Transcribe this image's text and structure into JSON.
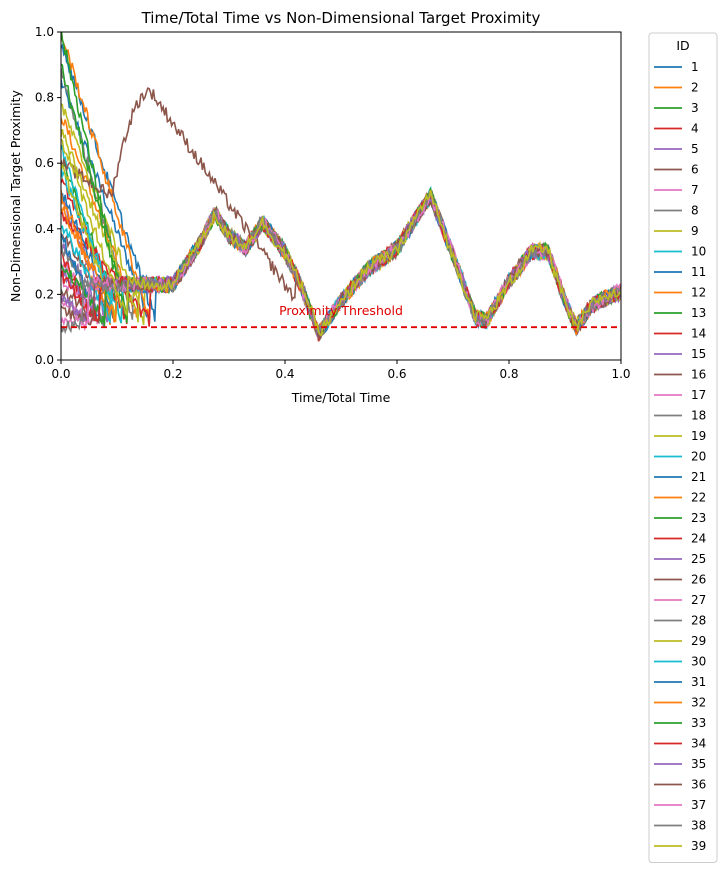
{
  "chart_data": {
    "type": "line",
    "title": "Time/Total Time vs Non-Dimensional Target Proximity",
    "xlabel": "Time/Total Time",
    "ylabel": "Non-Dimensional Target Proximity",
    "xlim": [
      0,
      1
    ],
    "ylim": [
      0,
      1
    ],
    "x_ticks": [
      "0.0",
      "0.2",
      "0.4",
      "0.6",
      "0.8",
      "1.0"
    ],
    "y_ticks": [
      "0.0",
      "0.2",
      "0.4",
      "0.6",
      "0.8",
      "1.0"
    ],
    "grid": false,
    "legend": {
      "title": "ID",
      "placement": "outside-right"
    },
    "threshold": {
      "y": 0.1,
      "label": "Proximity Threshold",
      "color": "#e00000",
      "style": "dashed"
    },
    "common_x": [
      0.2,
      0.25,
      0.275,
      0.3,
      0.33,
      0.36,
      0.4,
      0.43,
      0.46,
      0.5,
      0.55,
      0.6,
      0.64,
      0.66,
      0.7,
      0.74,
      0.76,
      0.8,
      0.84,
      0.87,
      0.9,
      0.92,
      0.95,
      1.0
    ],
    "common_y": [
      0.23,
      0.36,
      0.45,
      0.38,
      0.34,
      0.42,
      0.33,
      0.22,
      0.08,
      0.18,
      0.28,
      0.34,
      0.45,
      0.5,
      0.32,
      0.13,
      0.12,
      0.24,
      0.33,
      0.33,
      0.18,
      0.1,
      0.17,
      0.21
    ],
    "series": [
      {
        "name": "1",
        "color": "#1f77b4",
        "start": 0.85,
        "x0": 0.16
      },
      {
        "name": "2",
        "color": "#ff7f0e",
        "start": 0.75,
        "x0": 0.14
      },
      {
        "name": "3",
        "color": "#2ca02c",
        "start": 0.62,
        "x0": 0.11
      },
      {
        "name": "4",
        "color": "#d62728",
        "start": 0.55,
        "x0": 0.12
      },
      {
        "name": "5",
        "color": "#9467bd",
        "start": 0.5,
        "x0": 0.09
      },
      {
        "name": "6",
        "color": "#8c564b",
        "start": 0.4,
        "x0": 0.1
      },
      {
        "name": "7",
        "color": "#e377c2",
        "start": 0.3,
        "x0": 0.08
      },
      {
        "name": "8",
        "color": "#7f7f7f",
        "start": 0.88,
        "x0": 0.13
      },
      {
        "name": "9",
        "color": "#bcbd22",
        "start": 0.78,
        "x0": 0.15
      },
      {
        "name": "10",
        "color": "#17becf",
        "start": 0.65,
        "x0": 0.1
      },
      {
        "name": "11",
        "color": "#1f77b4",
        "start": 0.97,
        "x0": 0.17
      },
      {
        "name": "12",
        "color": "#ff7f0e",
        "start": 1.0,
        "x0": 0.16
      },
      {
        "name": "13",
        "color": "#2ca02c",
        "start": 1.0,
        "x0": 0.12
      },
      {
        "name": "14",
        "color": "#d62728",
        "start": 0.45,
        "x0": 0.16
      },
      {
        "name": "15",
        "color": "#9467bd",
        "start": 0.35,
        "x0": 0.09
      },
      {
        "name": "16",
        "color": "#8c564b",
        "start": 0.6,
        "x0": 0.42
      },
      {
        "name": "17",
        "color": "#e377c2",
        "start": 0.25,
        "x0": 0.07
      },
      {
        "name": "18",
        "color": "#7f7f7f",
        "start": 0.2,
        "x0": 0.05
      },
      {
        "name": "19",
        "color": "#bcbd22",
        "start": 0.7,
        "x0": 0.14
      },
      {
        "name": "20",
        "color": "#17becf",
        "start": 0.58,
        "x0": 0.11
      },
      {
        "name": "21",
        "color": "#1f77b4",
        "start": 0.52,
        "x0": 0.1
      },
      {
        "name": "22",
        "color": "#ff7f0e",
        "start": 0.48,
        "x0": 0.09
      },
      {
        "name": "23",
        "color": "#2ca02c",
        "start": 0.9,
        "x0": 0.12
      },
      {
        "name": "24",
        "color": "#d62728",
        "start": 0.32,
        "x0": 0.06
      },
      {
        "name": "25",
        "color": "#9467bd",
        "start": 0.28,
        "x0": 0.08
      },
      {
        "name": "26",
        "color": "#8c564b",
        "start": 0.22,
        "x0": 0.07
      },
      {
        "name": "27",
        "color": "#e377c2",
        "start": 0.18,
        "x0": 0.06
      },
      {
        "name": "28",
        "color": "#7f7f7f",
        "start": 0.35,
        "x0": 0.08
      },
      {
        "name": "29",
        "color": "#bcbd22",
        "start": 0.6,
        "x0": 0.1
      },
      {
        "name": "30",
        "color": "#17becf",
        "start": 0.42,
        "x0": 0.09
      },
      {
        "name": "31",
        "color": "#1f77b4",
        "start": 0.38,
        "x0": 0.07
      },
      {
        "name": "32",
        "color": "#ff7f0e",
        "start": 0.5,
        "x0": 0.1
      },
      {
        "name": "33",
        "color": "#2ca02c",
        "start": 0.3,
        "x0": 0.08
      },
      {
        "name": "34",
        "color": "#d62728",
        "start": 0.26,
        "x0": 0.07
      },
      {
        "name": "35",
        "color": "#9467bd",
        "start": 0.2,
        "x0": 0.05
      },
      {
        "name": "36",
        "color": "#8c564b",
        "start": 0.15,
        "x0": 0.06
      },
      {
        "name": "37",
        "color": "#e377c2",
        "start": 0.12,
        "x0": 0.05
      },
      {
        "name": "38",
        "color": "#7f7f7f",
        "start": 0.1,
        "x0": 0.04
      },
      {
        "name": "39",
        "color": "#bcbd22",
        "start": 0.68,
        "x0": 0.12
      }
    ]
  }
}
